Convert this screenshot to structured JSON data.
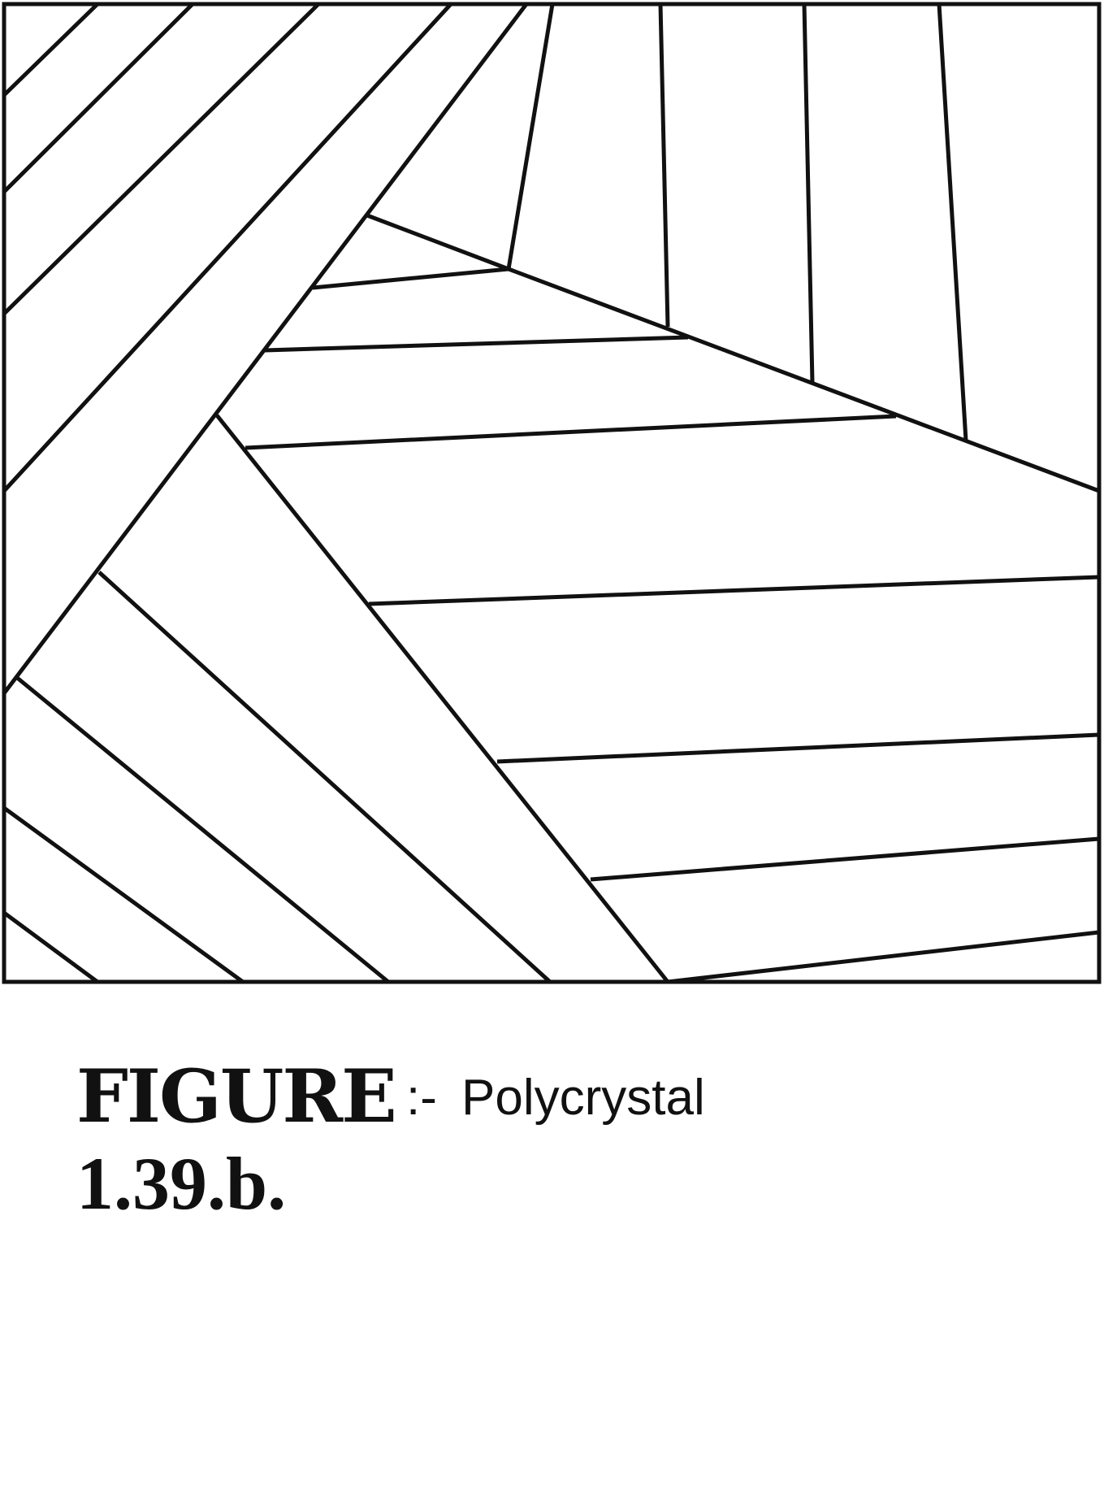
{
  "figure": {
    "label": "FIGURE",
    "number": "1.39.b.",
    "separator": ":-",
    "caption": "Polycrystal"
  },
  "diagram": {
    "line_color": "#111111",
    "background": "#ffffff"
  }
}
